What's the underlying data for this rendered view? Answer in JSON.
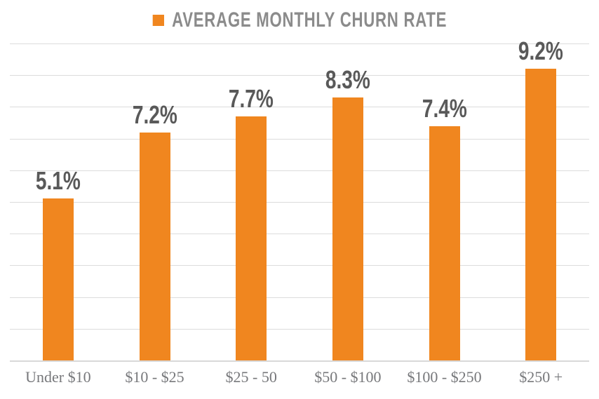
{
  "chart_data": {
    "type": "bar",
    "title": "AVERAGE MONTHLY CHURN RATE",
    "categories": [
      "Under $10",
      "$10 - $25",
      "$25 - 50",
      "$50 - $100",
      "$100 - $250",
      "$250 +"
    ],
    "values": [
      5.1,
      7.2,
      7.7,
      8.3,
      7.4,
      9.2
    ],
    "value_labels": [
      "5.1%",
      "7.2%",
      "7.7%",
      "8.3%",
      "7.4%",
      "9.2%"
    ],
    "xlabel": "",
    "ylabel": "",
    "ylim": [
      0,
      10
    ],
    "gridline_step": 1,
    "grid": true,
    "legend_position": "top-center",
    "legend": [
      {
        "label": "AVERAGE MONTHLY CHURN RATE",
        "swatch": "orange-square"
      }
    ]
  },
  "colors": {
    "bar": "#F0861F",
    "gridline": "#DCDCDC",
    "axis_line": "#D9D9D9",
    "value_label": "#595959",
    "legend_text": "#8B8B8B",
    "category_label": "#77787B",
    "background": "#FFFFFF"
  }
}
